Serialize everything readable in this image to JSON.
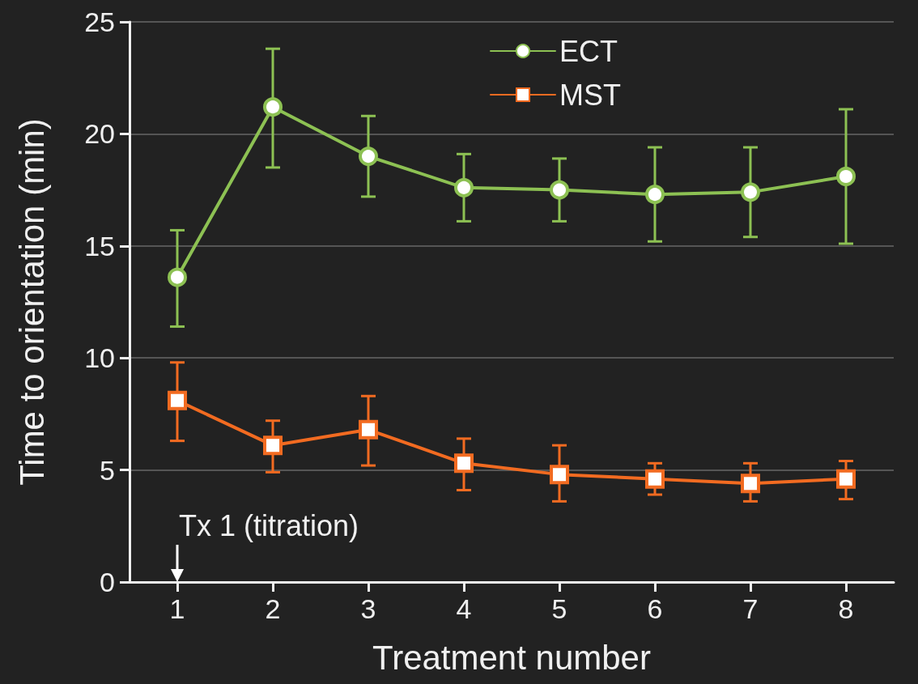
{
  "chart_data": {
    "type": "line",
    "xlabel": "Treatment number",
    "ylabel": "Time to orientation (min)",
    "categories": [
      "1",
      "2",
      "3",
      "4",
      "5",
      "6",
      "7",
      "8"
    ],
    "series": [
      {
        "name": "ECT",
        "color": "#8dc153",
        "marker": "circle",
        "values": [
          13.6,
          21.2,
          19.0,
          17.6,
          17.5,
          17.3,
          17.4,
          18.1
        ],
        "errors": [
          [
            11.4,
            15.7
          ],
          [
            18.5,
            23.8
          ],
          [
            17.2,
            20.8
          ],
          [
            16.1,
            19.1
          ],
          [
            16.1,
            18.9
          ],
          [
            15.2,
            19.4
          ],
          [
            15.4,
            19.4
          ],
          [
            15.1,
            21.1
          ]
        ]
      },
      {
        "name": "MST",
        "color": "#f26b21",
        "marker": "square",
        "values": [
          8.1,
          6.1,
          6.8,
          5.3,
          4.8,
          4.6,
          4.4,
          4.6
        ],
        "errors": [
          [
            6.3,
            9.8
          ],
          [
            4.9,
            7.2
          ],
          [
            5.2,
            8.3
          ],
          [
            4.1,
            6.4
          ],
          [
            3.6,
            6.1
          ],
          [
            3.9,
            5.3
          ],
          [
            3.6,
            5.3
          ],
          [
            3.7,
            5.4
          ]
        ]
      }
    ],
    "ylim": [
      0,
      25
    ],
    "yticks": [
      0,
      5,
      10,
      15,
      20,
      25
    ],
    "grid": "y",
    "legend": "top",
    "line_style": "solid",
    "annotations": [
      "Tx 1 (titration)"
    ]
  }
}
